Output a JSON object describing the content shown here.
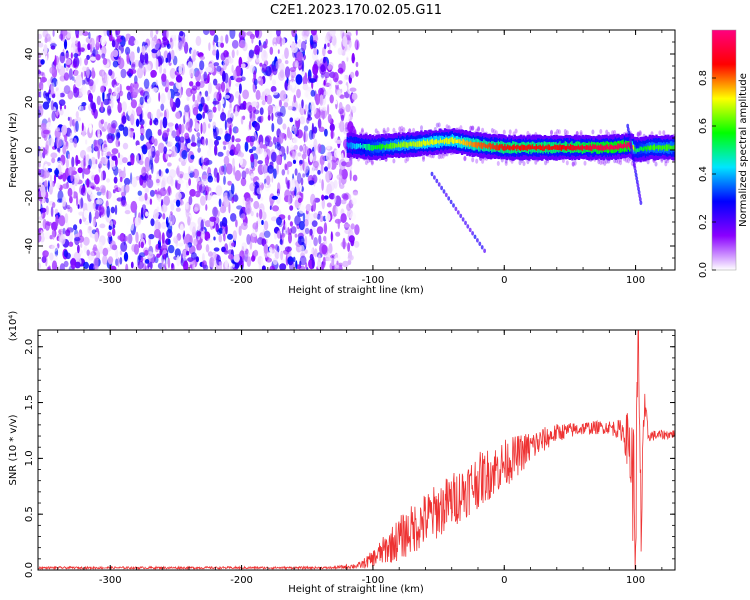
{
  "figure": {
    "title": "C2E1.2023.170.02.05.G11"
  },
  "colorbar": {
    "label": "Normalized spectral amplitude",
    "range": [
      0,
      1
    ],
    "ticks": [
      0.0,
      0.2,
      0.4,
      0.6,
      0.8
    ],
    "tick_labels": [
      "0.0",
      "0.2",
      "0.4",
      "0.6",
      "0.8"
    ],
    "colors": [
      "#ffffff",
      "#8a00ff",
      "#0000ff",
      "#00e6ff",
      "#00ff00",
      "#ffff00",
      "#ff0000",
      "#ff007f"
    ]
  },
  "chart_data": [
    {
      "type": "heatmap",
      "name": "spectrogram",
      "xlabel": "Height of straight line (km)",
      "ylabel": "Frequency (Hz)",
      "xlim": [
        -355,
        130
      ],
      "ylim": [
        -50,
        50
      ],
      "x_ticks": [
        -300,
        -200,
        -100,
        0,
        100
      ],
      "x_tick_labels": [
        "-300",
        "-200",
        "-100",
        "0",
        "100"
      ],
      "y_ticks": [
        -40,
        -20,
        0,
        20,
        40
      ],
      "y_tick_labels": [
        "-40",
        "-20",
        "0",
        "20",
        "40"
      ],
      "noise_region_x": [
        -355,
        -120
      ],
      "signal_start_x": -120,
      "signal_line": {
        "x": [
          -120,
          -100,
          -80,
          -60,
          -40,
          -20,
          0,
          20,
          40,
          60,
          80,
          95,
          100,
          110,
          130
        ],
        "y": [
          2,
          1,
          2,
          3,
          4,
          2,
          1,
          1,
          1,
          1,
          1,
          2,
          0,
          1,
          1
        ],
        "amplitude": [
          0.35,
          0.55,
          0.65,
          0.7,
          0.7,
          0.8,
          0.85,
          0.85,
          0.85,
          0.9,
          0.95,
          0.95,
          0.5,
          0.6,
          0.6
        ]
      },
      "streaks": [
        {
          "x": [
            -55,
            -15
          ],
          "y": [
            -10,
            -42
          ]
        },
        {
          "x": [
            94,
            104
          ],
          "y": [
            10,
            -22
          ]
        }
      ]
    },
    {
      "type": "line",
      "name": "snr",
      "xlabel": "Height of straight line (km)",
      "ylabel": "SNR (10 * v/v)",
      "y_multiplier_label": "(x10⁴)",
      "xlim": [
        -355,
        130
      ],
      "ylim": [
        0,
        2.15
      ],
      "x_ticks": [
        -300,
        -200,
        -100,
        0,
        100
      ],
      "x_tick_labels": [
        "-300",
        "-200",
        "-100",
        "0",
        "100"
      ],
      "y_ticks": [
        0.0,
        0.5,
        1.0,
        1.5,
        2.0
      ],
      "y_tick_labels": [
        "0.0",
        "0.5",
        "1.0",
        "1.5",
        "2.0"
      ],
      "color": "#ee3333",
      "series": [
        {
          "x": [
            -355,
            -300,
            -200,
            -130,
            -110,
            -100,
            -80,
            -60,
            -40,
            -20,
            0,
            20,
            40,
            60,
            80,
            90,
            95,
            98,
            100,
            102,
            104,
            106,
            110,
            130
          ],
          "y": [
            0.02,
            0.02,
            0.02,
            0.02,
            0.04,
            0.1,
            0.28,
            0.45,
            0.62,
            0.8,
            0.95,
            1.1,
            1.23,
            1.27,
            1.28,
            1.25,
            1.15,
            0.8,
            0.4,
            2.1,
            0.3,
            1.4,
            1.2,
            1.22
          ],
          "noise": [
            0.01,
            0.01,
            0.01,
            0.01,
            0.03,
            0.08,
            0.2,
            0.25,
            0.25,
            0.25,
            0.22,
            0.15,
            0.08,
            0.06,
            0.06,
            0.1,
            0.3,
            0.6,
            0.8,
            0.3,
            0.6,
            0.3,
            0.05,
            0.04
          ]
        }
      ]
    }
  ]
}
